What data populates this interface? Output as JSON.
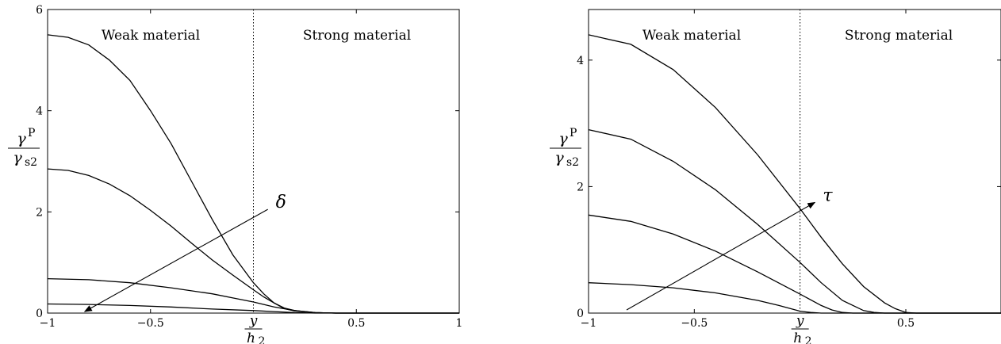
{
  "chart_data": [
    {
      "type": "line",
      "xlim": [
        -1,
        1
      ],
      "ylim": [
        0,
        6
      ],
      "xticks": [
        -1,
        -0.5,
        0.5,
        1
      ],
      "xtick_labels": [
        "−1",
        "−0.5",
        "0.5",
        "1"
      ],
      "yticks": [
        0,
        2,
        4,
        6
      ],
      "ytick_labels": [
        "0",
        "2",
        "4",
        "6"
      ],
      "interface_x": 0,
      "regions": [
        {
          "label": "Weak material"
        },
        {
          "label": "Strong material"
        }
      ],
      "xlabel": {
        "num": "y",
        "den": "h",
        "den_sub": "2"
      },
      "ylabel": {
        "num": "γ",
        "num_sup": "P",
        "den": "γ",
        "den_sub": "s2"
      },
      "arrow": {
        "label": "δ",
        "from": [
          0.07,
          2.05
        ],
        "to": [
          -0.82,
          0.03
        ]
      },
      "series": [
        {
          "x": [
            -1,
            -0.9,
            -0.8,
            -0.7,
            -0.6,
            -0.5,
            -0.4,
            -0.3,
            -0.2,
            -0.1,
            0,
            0.05,
            0.1,
            0.15,
            0.2,
            0.3,
            0.4,
            0.5,
            1
          ],
          "values": [
            5.5,
            5.45,
            5.3,
            5.0,
            4.6,
            4.0,
            3.35,
            2.6,
            1.85,
            1.15,
            0.6,
            0.38,
            0.2,
            0.09,
            0.04,
            0.01,
            0,
            0,
            0
          ]
        },
        {
          "x": [
            -1,
            -0.9,
            -0.8,
            -0.7,
            -0.6,
            -0.5,
            -0.4,
            -0.3,
            -0.2,
            -0.1,
            0,
            0.05,
            0.1,
            0.15,
            0.2,
            0.3,
            0.4,
            0.5,
            1
          ],
          "values": [
            2.85,
            2.82,
            2.72,
            2.55,
            2.32,
            2.03,
            1.72,
            1.38,
            1.05,
            0.75,
            0.46,
            0.32,
            0.2,
            0.1,
            0.05,
            0.01,
            0,
            0,
            0
          ]
        },
        {
          "x": [
            -1,
            -0.8,
            -0.6,
            -0.4,
            -0.2,
            -0.1,
            0,
            0.1,
            0.2,
            0.3,
            0.4,
            0.5,
            1
          ],
          "values": [
            0.68,
            0.66,
            0.6,
            0.5,
            0.38,
            0.3,
            0.22,
            0.12,
            0.05,
            0.01,
            0,
            0,
            0
          ]
        },
        {
          "x": [
            -1,
            -0.8,
            -0.6,
            -0.4,
            -0.2,
            0,
            0.1,
            0.2,
            0.3,
            0.4,
            1
          ],
          "values": [
            0.18,
            0.17,
            0.15,
            0.12,
            0.08,
            0.05,
            0.03,
            0.01,
            0,
            0,
            0
          ]
        }
      ]
    },
    {
      "type": "line",
      "xlim": [
        -1,
        0.95
      ],
      "ylim": [
        0,
        4.8
      ],
      "xticks": [
        -1,
        -0.5,
        0.5
      ],
      "xtick_labels": [
        "−1",
        "−0.5",
        "0.5"
      ],
      "yticks": [
        0,
        2,
        4
      ],
      "ytick_labels": [
        "0",
        "2",
        "4"
      ],
      "interface_x": 0,
      "regions": [
        {
          "label": "Weak material"
        },
        {
          "label": "Strong material"
        }
      ],
      "xlabel": {
        "num": "y",
        "den": "h",
        "den_sub": "2"
      },
      "ylabel": {
        "num": "γ",
        "num_sup": "P",
        "den": "γ",
        "den_sub": "s2"
      },
      "arrow": {
        "label": "τ",
        "from": [
          -0.82,
          0.05
        ],
        "to": [
          0.07,
          1.75
        ]
      },
      "series": [
        {
          "x": [
            -1,
            -0.8,
            -0.6,
            -0.4,
            -0.2,
            0,
            0.1,
            0.2,
            0.3,
            0.4,
            0.45,
            0.5,
            0.55,
            0.95
          ],
          "values": [
            4.4,
            4.25,
            3.85,
            3.25,
            2.5,
            1.65,
            1.2,
            0.78,
            0.42,
            0.16,
            0.07,
            0.01,
            0,
            0
          ]
        },
        {
          "x": [
            -1,
            -0.8,
            -0.6,
            -0.4,
            -0.2,
            0,
            0.1,
            0.2,
            0.3,
            0.35,
            0.4,
            0.95
          ],
          "values": [
            2.9,
            2.75,
            2.4,
            1.95,
            1.4,
            0.8,
            0.48,
            0.2,
            0.04,
            0.01,
            0,
            0
          ]
        },
        {
          "x": [
            -1,
            -0.8,
            -0.6,
            -0.4,
            -0.2,
            0,
            0.1,
            0.15,
            0.2,
            0.25,
            0.95
          ],
          "values": [
            1.55,
            1.45,
            1.25,
            0.98,
            0.65,
            0.3,
            0.12,
            0.05,
            0.01,
            0,
            0
          ]
        },
        {
          "x": [
            -1,
            -0.8,
            -0.6,
            -0.4,
            -0.2,
            -0.1,
            0,
            0.05,
            0.1,
            0.95
          ],
          "values": [
            0.48,
            0.45,
            0.4,
            0.32,
            0.2,
            0.12,
            0.03,
            0.01,
            0,
            0
          ]
        }
      ]
    }
  ]
}
